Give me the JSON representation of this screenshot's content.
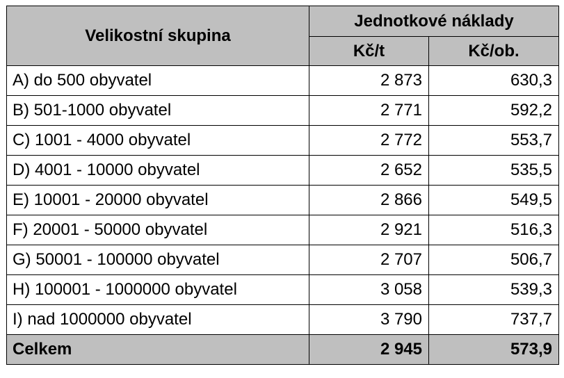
{
  "header": {
    "group_label": "Velikostní skupina",
    "unit_cost_label": "Jednotkové náklady",
    "col_per_ton": "Kč/t",
    "col_per_person": "Kč/ob."
  },
  "rows": [
    {
      "label": "A) do 500 obyvatel",
      "per_ton": "2 873",
      "per_person": "630,3"
    },
    {
      "label": "B) 501-1000 obyvatel",
      "per_ton": "2 771",
      "per_person": "592,2"
    },
    {
      "label": "C) 1001 - 4000 obyvatel",
      "per_ton": "2 772",
      "per_person": "553,7"
    },
    {
      "label": "D) 4001 - 10000 obyvatel",
      "per_ton": "2 652",
      "per_person": "535,5"
    },
    {
      "label": "E) 10001 - 20000 obyvatel",
      "per_ton": "2 866",
      "per_person": "549,5"
    },
    {
      "label": "F) 20001 - 50000 obyvatel",
      "per_ton": "2 921",
      "per_person": "516,3"
    },
    {
      "label": "G) 50001 - 100000 obyvatel",
      "per_ton": "2 707",
      "per_person": "506,7"
    },
    {
      "label": "H) 100001 - 1000000 obyvatel",
      "per_ton": "3 058",
      "per_person": "539,3"
    },
    {
      "label": "I) nad 1000000 obyvatel",
      "per_ton": "3 790",
      "per_person": "737,7"
    }
  ],
  "total": {
    "label": "Celkem",
    "per_ton": "2 945",
    "per_person": "573,9"
  },
  "colors": {
    "header_bg": "#bfbfbf",
    "border": "#000000"
  }
}
